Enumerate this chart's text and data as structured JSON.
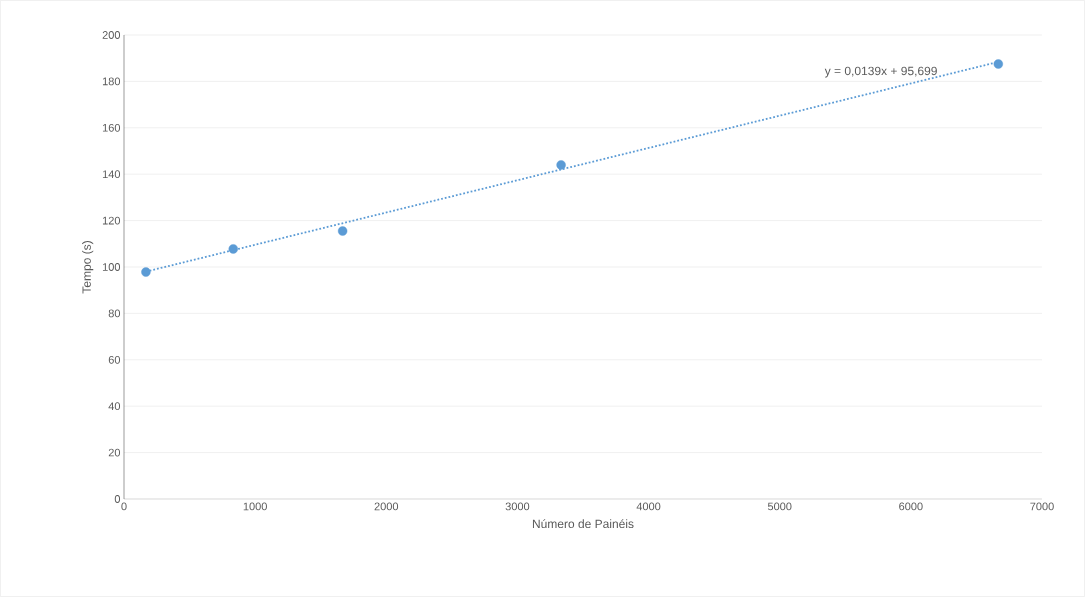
{
  "chart_data": {
    "type": "scatter",
    "xlabel": "Número de Painéis",
    "ylabel": "Tempo (s)",
    "x": [
      167,
      833,
      1667,
      3333,
      6667
    ],
    "series": [
      {
        "color": "#5b9bd5",
        "marker": "circle",
        "values": [
          97.8,
          107.8,
          115.5,
          144,
          187.5
        ]
      },
      {
        "type": "line",
        "color": "#5b9bd5",
        "line_style": "dotted",
        "marker": "none",
        "x": [
          167,
          6667
        ],
        "values": [
          98.0,
          188.4
        ]
      }
    ],
    "annotations": [
      "y = 0,0139x + 95,699"
    ],
    "xlim": [
      0,
      7000
    ],
    "xticks": [
      0,
      1000,
      2000,
      3000,
      4000,
      5000,
      6000,
      7000
    ],
    "ylim": [
      0,
      200
    ],
    "yticks": [
      0,
      20,
      40,
      60,
      80,
      100,
      120,
      140,
      160,
      180,
      200
    ],
    "grid": "y"
  }
}
